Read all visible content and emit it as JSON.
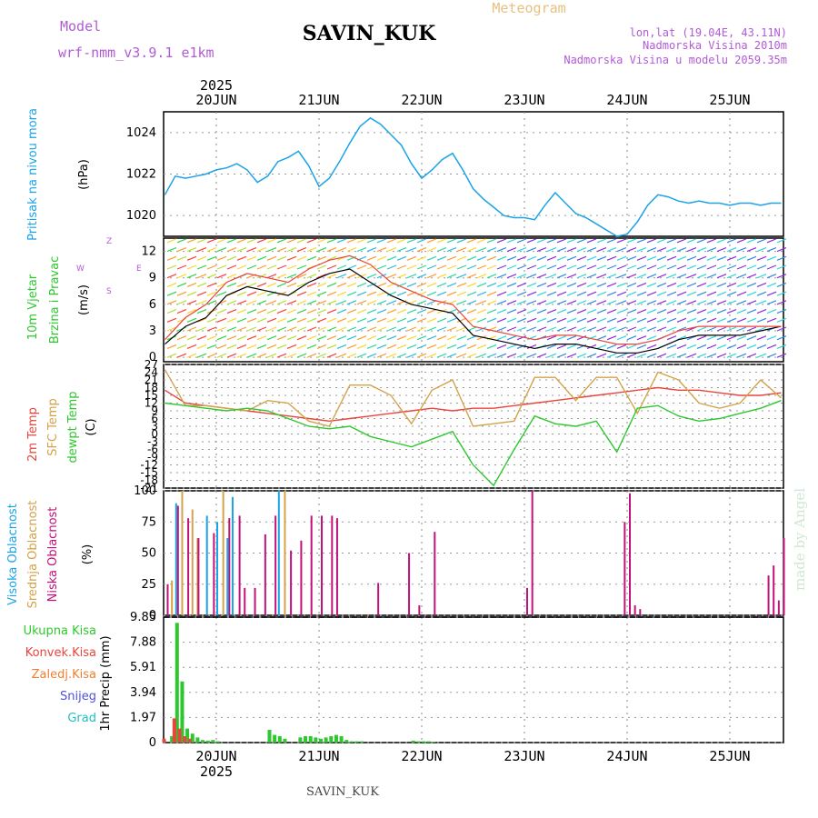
{
  "header": {
    "model_label": "Model",
    "model_name": "wrf-nmm_v3.9.1 e1km",
    "station": "SAVIN_KUK",
    "meteogram": "Meteogram",
    "lonlat": "lon,lat (19.04E, 43.11N)",
    "elevation": "Nadmorska Visina 2010m",
    "model_elevation": "Nadmorska Visina u modelu 2059.35m",
    "year_top": "2025",
    "year_bottom": "2025",
    "footer": "SAVIN_KUK",
    "credit": "made by Angel"
  },
  "colors": {
    "pressure": "#1aa3e8",
    "wind_speed": "#000000",
    "wind_gust": "#e8453c",
    "temp_2m": "#e8453c",
    "temp_sfc": "#d4a24a",
    "dewpoint": "#2ec82e",
    "cloud_high": "#1aa3e8",
    "cloud_mid": "#d4a24a",
    "cloud_low": "#c0127a",
    "precip_total": "#2ec82e",
    "precip_conv": "#e8453c",
    "snow": "#5050e0",
    "hail": "#20c0c0"
  },
  "chart_data": [
    {
      "type": "line",
      "title": "",
      "ylabel": [
        "Pritisak na nivou mora",
        "(hPa)"
      ],
      "x_ticks": [
        "20JUN",
        "21JUN",
        "22JUN",
        "23JUN",
        "24JUN",
        "25JUN"
      ],
      "yticks": [
        "1020",
        "1022",
        "1024"
      ],
      "ylim": [
        1019,
        1025
      ],
      "series": [
        {
          "x": [
            0.0,
            0.1,
            0.2,
            0.3,
            0.4,
            0.5,
            0.6,
            0.7,
            0.8,
            0.9,
            1.0,
            1.1,
            1.2,
            1.3,
            1.4,
            1.5,
            1.6,
            1.7,
            1.8,
            1.9,
            2.0,
            2.1,
            2.2,
            2.3,
            2.4,
            2.5,
            2.6,
            2.7,
            2.8,
            2.9,
            3.0,
            3.1,
            3.2,
            3.3,
            3.4,
            3.5,
            3.6,
            3.7,
            3.8,
            3.9,
            4.0,
            4.1,
            4.2,
            4.3,
            4.4,
            4.5,
            4.6,
            4.7,
            4.8,
            4.9,
            5.0,
            5.1,
            5.2,
            5.3,
            5.4,
            5.5,
            5.6,
            5.7,
            5.8,
            5.9,
            6.0
          ],
          "values": [
            1021.0,
            1021.9,
            1021.8,
            1021.9,
            1022.0,
            1022.2,
            1022.3,
            1022.5,
            1022.2,
            1021.6,
            1021.9,
            1022.6,
            1022.8,
            1023.1,
            1022.4,
            1021.4,
            1021.8,
            1022.6,
            1023.5,
            1024.3,
            1024.7,
            1024.4,
            1023.9,
            1023.4,
            1022.5,
            1021.8,
            1022.2,
            1022.7,
            1023.0,
            1022.2,
            1021.3,
            1020.8,
            1020.4,
            1020.0,
            1019.9,
            1019.9,
            1019.8,
            1020.5,
            1021.1,
            1020.6,
            1020.1,
            1019.9,
            1019.6,
            1019.3,
            1019.0,
            1019.1,
            1019.7,
            1020.5,
            1021.0,
            1020.9,
            1020.7,
            1020.6,
            1020.7,
            1020.6,
            1020.6,
            1020.5,
            1020.6,
            1020.6,
            1020.5,
            1020.6,
            1020.6
          ]
        }
      ]
    },
    {
      "type": "line",
      "title": "",
      "ylabel": [
        "10m Vjetar",
        "Brzina i Pravac",
        "(m/s)"
      ],
      "compass": [
        "W",
        "E",
        "S",
        "Z"
      ],
      "yticks": [
        "0",
        "3",
        "6",
        "9",
        "12"
      ],
      "ylim": [
        -0.5,
        13.5
      ],
      "wind_rows": [
        0,
        1,
        2,
        3,
        4,
        5,
        6,
        7,
        8,
        9,
        10,
        11,
        12,
        13
      ],
      "series": [
        {
          "name": "",
          "x": [
            0.0,
            0.2,
            0.4,
            0.6,
            0.8,
            1.0,
            1.2,
            1.4,
            1.6,
            1.8,
            2.0,
            2.2,
            2.4,
            2.6,
            2.8,
            3.0,
            3.2,
            3.4,
            3.6,
            3.8,
            4.0,
            4.2,
            4.4,
            4.6,
            4.8,
            5.0,
            5.2,
            5.4,
            5.6,
            5.8,
            6.0
          ],
          "values": [
            1.5,
            3.5,
            4.5,
            7.0,
            8.0,
            7.5,
            7.0,
            8.5,
            9.5,
            10.0,
            8.5,
            7.0,
            6.0,
            5.5,
            5.0,
            2.5,
            2.0,
            1.5,
            1.0,
            1.5,
            1.5,
            1.0,
            0.5,
            0.5,
            1.0,
            2.0,
            2.5,
            2.5,
            2.5,
            3.0,
            3.5
          ]
        },
        {
          "name": "",
          "x": [
            0.0,
            0.2,
            0.4,
            0.6,
            0.8,
            1.0,
            1.2,
            1.4,
            1.6,
            1.8,
            2.0,
            2.2,
            2.4,
            2.6,
            2.8,
            3.0,
            3.2,
            3.4,
            3.6,
            3.8,
            4.0,
            4.2,
            4.4,
            4.6,
            4.8,
            5.0,
            5.2,
            5.4,
            5.6,
            5.8,
            6.0
          ],
          "values": [
            2.0,
            4.5,
            6.0,
            8.5,
            9.5,
            9.0,
            8.5,
            10.0,
            11.0,
            11.5,
            10.5,
            8.5,
            7.5,
            6.5,
            6.0,
            3.5,
            3.0,
            2.5,
            2.0,
            2.5,
            2.5,
            2.0,
            1.5,
            1.5,
            2.0,
            3.0,
            3.5,
            3.5,
            3.5,
            3.5,
            3.5
          ]
        }
      ]
    },
    {
      "type": "line",
      "title": "",
      "ylabel": [
        "2m Temp",
        "SFC Temp",
        "dewpt Temp",
        "(C)"
      ],
      "yticks": [
        "27",
        "24",
        "21",
        "18",
        "15",
        "12",
        "9",
        "6",
        "3",
        "0",
        "-3",
        "-6",
        "-9",
        "-12",
        "-15",
        "-18",
        "-21"
      ],
      "ylim": [
        -21,
        27
      ],
      "series": [
        {
          "name": "2m Temp",
          "x": [
            0.0,
            0.2,
            0.4,
            0.6,
            0.8,
            1.0,
            1.2,
            1.4,
            1.6,
            1.8,
            2.0,
            2.2,
            2.4,
            2.6,
            2.8,
            3.0,
            3.2,
            3.4,
            3.6,
            3.8,
            4.0,
            4.2,
            4.4,
            4.6,
            4.8,
            5.0,
            5.2,
            5.4,
            5.6,
            5.8,
            6.0
          ],
          "values": [
            17,
            12,
            11,
            10,
            9,
            8,
            7,
            6,
            5,
            6,
            7,
            8,
            9,
            10,
            9,
            10,
            10,
            11,
            12,
            13,
            14,
            15,
            16,
            17,
            18,
            17,
            17,
            16,
            15,
            15,
            16
          ]
        },
        {
          "name": "SFC Temp",
          "x": [
            0.0,
            0.2,
            0.4,
            0.6,
            0.8,
            1.0,
            1.2,
            1.4,
            1.6,
            1.8,
            2.0,
            2.2,
            2.4,
            2.6,
            2.8,
            3.0,
            3.2,
            3.4,
            3.6,
            3.8,
            4.0,
            4.2,
            4.4,
            4.6,
            4.8,
            5.0,
            5.2,
            5.4,
            5.6,
            5.8,
            6.0
          ],
          "values": [
            25,
            11,
            11,
            10,
            9,
            13,
            12,
            5,
            3,
            19,
            19,
            15,
            4,
            17,
            21,
            3,
            4,
            5,
            22,
            22,
            13,
            22,
            22,
            8,
            24,
            21,
            12,
            10,
            12,
            21,
            14
          ]
        },
        {
          "name": "dewpt Temp",
          "x": [
            0.0,
            0.2,
            0.4,
            0.6,
            0.8,
            1.0,
            1.2,
            1.4,
            1.6,
            1.8,
            2.0,
            2.2,
            2.4,
            2.6,
            2.8,
            3.0,
            3.2,
            3.4,
            3.6,
            3.8,
            4.0,
            4.2,
            4.4,
            4.6,
            4.8,
            5.0,
            5.2,
            5.4,
            5.6,
            5.8,
            6.0
          ],
          "values": [
            12,
            11,
            10,
            9,
            10,
            9,
            6,
            3,
            2,
            3,
            -1,
            -3,
            -5,
            -2,
            1,
            -12,
            -20,
            -6,
            7,
            4,
            3,
            5,
            -7,
            10,
            11,
            7,
            5,
            6,
            8,
            10,
            13
          ]
        }
      ]
    },
    {
      "type": "bar",
      "title": "",
      "ylabel": [
        "Visoka Oblacnost",
        "Srednja Oblacnost",
        "Niska Oblacnost",
        "(%)"
      ],
      "yticks": [
        "0",
        "25",
        "50",
        "75",
        "100"
      ],
      "ylim": [
        0,
        100
      ],
      "series": [
        {
          "name": "Visoka Oblacnost",
          "x": [
            0.1,
            0.4,
            0.5,
            0.6,
            0.65,
            1.1
          ],
          "values": [
            90,
            80,
            75,
            62,
            95,
            100
          ]
        },
        {
          "name": "Srednja Oblacnost",
          "x": [
            0.05,
            0.15,
            0.25,
            0.3,
            0.55,
            1.15
          ],
          "values": [
            28,
            100,
            85,
            62,
            100,
            100
          ]
        },
        {
          "name": "Niska Oblacnost",
          "x": [
            0.0,
            0.1,
            0.2,
            0.3,
            0.45,
            0.6,
            0.7,
            0.75,
            0.85,
            0.95,
            1.05,
            1.2,
            1.3,
            1.4,
            1.5,
            1.6,
            1.65,
            2.05,
            2.35,
            2.45,
            2.6,
            3.5,
            3.55,
            4.45,
            4.5,
            4.55,
            4.6,
            5.85,
            5.9,
            5.95,
            6.0
          ],
          "values": [
            25,
            88,
            78,
            62,
            66,
            78,
            80,
            22,
            22,
            65,
            80,
            52,
            60,
            80,
            80,
            80,
            78,
            26,
            50,
            8,
            67,
            22,
            100,
            75,
            98,
            8,
            5,
            32,
            40,
            12,
            62
          ]
        }
      ]
    },
    {
      "type": "bar",
      "title": "",
      "ylabel": [
        "Ukupna Kisa",
        "Konvek.Kisa",
        "Zaledj.Kisa",
        "Snijeg",
        "Grad",
        "1hr Precip (mm)"
      ],
      "yticks": [
        "0",
        "1.97",
        "3.94",
        "5.91",
        "7.88",
        "9.85"
      ],
      "ylim": [
        0,
        9.85
      ],
      "series": [
        {
          "name": "Ukupna Kisa",
          "x": [
            0.05,
            0.1,
            0.15,
            0.2,
            0.25,
            0.3,
            0.35,
            0.4,
            0.45,
            0.5,
            1.0,
            1.05,
            1.1,
            1.15,
            1.3,
            1.35,
            1.4,
            1.45,
            1.5,
            1.55,
            1.6,
            1.65,
            1.7,
            1.75,
            1.8,
            1.85,
            1.9,
            2.4,
            2.45,
            2.5,
            2.55,
            2.6
          ],
          "values": [
            0.5,
            9.4,
            4.8,
            1.1,
            0.7,
            0.4,
            0.2,
            0.15,
            0.2,
            0.1,
            1.0,
            0.6,
            0.5,
            0.3,
            0.4,
            0.5,
            0.5,
            0.4,
            0.3,
            0.4,
            0.5,
            0.6,
            0.5,
            0.2,
            0.1,
            0.1,
            0.1,
            0.15,
            0.1,
            0.1,
            0.1,
            0.05
          ]
        },
        {
          "name": "Konvek.Kisa",
          "x": [
            0.0,
            0.1,
            0.15,
            0.2,
            0.25
          ],
          "values": [
            0.3,
            1.9,
            1.1,
            0.5,
            0.3
          ]
        }
      ]
    }
  ]
}
